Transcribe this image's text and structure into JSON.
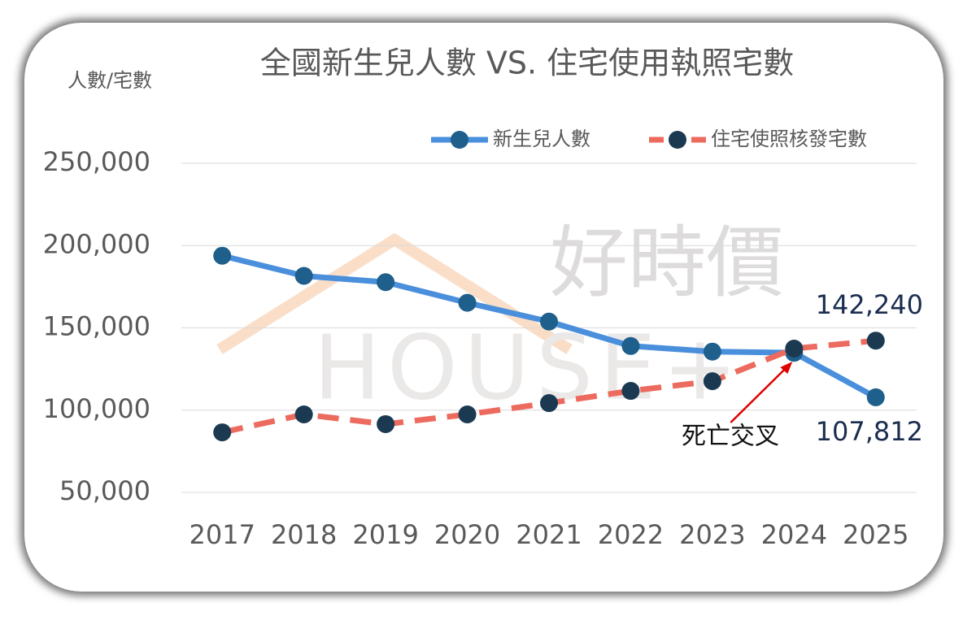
{
  "chart_data": {
    "type": "line",
    "title": "全國新生兒人數 VS. 住宅使用執照宅數",
    "y_axis_label": "人數/宅數",
    "watermark": [
      "好時價",
      "HOUSE+"
    ],
    "categories": [
      "2017",
      "2018",
      "2019",
      "2020",
      "2021",
      "2022",
      "2023",
      "2024",
      "2025"
    ],
    "series": [
      {
        "name": "新生兒人數",
        "color": "#4a8fdc",
        "marker_color": "#1f5f8b",
        "dashed": false,
        "values": [
          193844,
          181601,
          177767,
          165249,
          153820,
          138986,
          135571,
          134856,
          107812
        ],
        "value_labels": [
          null,
          null,
          null,
          null,
          null,
          null,
          null,
          null,
          "107,812"
        ]
      },
      {
        "name": "住宅使照核發宅數",
        "color": "#ec6b5e",
        "marker_color": "#1b3a52",
        "dashed": true,
        "values": [
          86500,
          97400,
          91500,
          97400,
          104300,
          111700,
          117600,
          137400,
          142240
        ],
        "value_labels": [
          null,
          null,
          null,
          null,
          null,
          null,
          null,
          null,
          "142,240"
        ]
      }
    ],
    "ylim": [
      50000,
      250000
    ],
    "yticks": [
      {
        "value": 50000,
        "label": "50,000"
      },
      {
        "value": 100000,
        "label": "100,000"
      },
      {
        "value": 150000,
        "label": "150,000"
      },
      {
        "value": 200000,
        "label": "200,000"
      },
      {
        "value": 250000,
        "label": "250,000"
      }
    ],
    "grid": true,
    "legend": "top-right",
    "annotation": {
      "text": "死亡交叉",
      "category_index": 7
    }
  }
}
